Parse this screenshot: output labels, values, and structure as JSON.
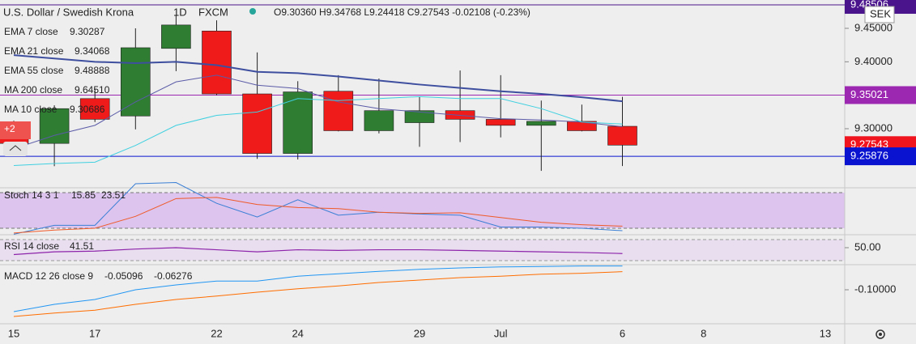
{
  "header": {
    "title": "U.S. Dollar / Swedish Krona",
    "interval": "1D",
    "source": "FXCM",
    "ohlc": "O9.30360 H9.34768 L9.24418 C9.27543 -0.02108 (-0.23%)",
    "currency": "SEK",
    "hidden_count": "+2"
  },
  "legend": [
    {
      "name": "EMA 7 close",
      "value": "9.30287",
      "color": "#3a6fc0"
    },
    {
      "name": "EMA 21 close",
      "value": "9.34068",
      "color": "#3f4f9f"
    },
    {
      "name": "EMA 55 close",
      "value": "9.48888",
      "color": "#f5a623"
    },
    {
      "name": "MA 200 close",
      "value": "9.64510",
      "color": "#ef5350"
    },
    {
      "name": "MA 10 close",
      "value": "9.30686",
      "color": "#3fd0e0"
    }
  ],
  "candles": {
    "open": [
      9.308,
      9.278,
      9.345,
      9.319,
      9.42,
      9.446,
      9.352,
      9.263,
      9.356,
      9.297,
      9.309,
      9.327,
      9.314,
      9.305,
      9.311,
      9.3036
    ],
    "high": [
      9.312,
      9.335,
      9.36,
      9.45,
      9.47,
      9.462,
      9.414,
      9.371,
      9.38,
      9.375,
      9.348,
      9.387,
      9.38,
      9.342,
      9.336,
      9.34768
    ],
    "low": [
      9.265,
      9.244,
      9.31,
      9.299,
      9.386,
      9.35,
      9.255,
      9.254,
      9.296,
      9.293,
      9.273,
      9.28,
      9.287,
      9.237,
      9.296,
      9.24418
    ],
    "close": [
      9.278,
      9.33,
      9.314,
      9.421,
      9.455,
      9.352,
      9.263,
      9.355,
      9.297,
      9.327,
      9.327,
      9.314,
      9.305,
      9.311,
      9.297,
      9.27543
    ]
  },
  "price_lines": [
    {
      "name": "EMA 7 close",
      "color": "#5b5ba8",
      "width": 1,
      "values": [
        9.27,
        9.29,
        9.305,
        9.34,
        9.37,
        9.38,
        9.365,
        9.36,
        9.34,
        9.33,
        9.325,
        9.32,
        9.315,
        9.313,
        9.31,
        9.303
      ]
    },
    {
      "name": "EMA 21 close",
      "color": "#3f4f9f",
      "width": 2,
      "values": [
        9.41,
        9.405,
        9.4,
        9.398,
        9.4,
        9.395,
        9.385,
        9.383,
        9.378,
        9.372,
        9.366,
        9.361,
        9.356,
        9.352,
        9.347,
        9.341
      ]
    },
    {
      "name": "MA 10 close",
      "color": "#3fd0e0",
      "width": 1,
      "values": [
        9.245,
        9.248,
        9.25,
        9.275,
        9.305,
        9.32,
        9.325,
        9.345,
        9.342,
        9.345,
        9.348,
        9.345,
        9.345,
        9.33,
        9.31,
        9.307
      ]
    }
  ],
  "price_axis": {
    "ticks": [
      {
        "value": 9.45,
        "label": "9.45000"
      },
      {
        "value": 9.4,
        "label": "9.40000"
      },
      {
        "value": 9.3,
        "label": "9.30000"
      }
    ],
    "markers": [
      {
        "value": 9.48506,
        "color": "#4a148c"
      },
      {
        "value": 9.35021,
        "color": "#9c27b0"
      },
      {
        "value": 9.27543,
        "color": "#f0141e"
      },
      {
        "value": 9.25876,
        "color": "#0a14d0"
      }
    ]
  },
  "stoch": {
    "name": "Stoch 14 3 1",
    "band": [
      20,
      80
    ],
    "k": {
      "value": "15.85",
      "color": "#3a7fd5",
      "values": [
        10,
        25,
        25,
        95,
        97,
        62,
        39,
        68,
        42,
        47,
        44,
        42,
        22,
        22,
        20,
        15.85
      ]
    },
    "d": {
      "value": "23.51",
      "color": "#f05a28",
      "values": [
        12,
        17,
        20,
        40,
        70,
        72,
        60,
        55,
        53,
        47,
        45,
        46,
        38,
        30,
        26,
        23.51
      ]
    }
  },
  "rsi": {
    "name": "RSI 14 close",
    "value": "41.51",
    "color": "#8e24aa",
    "tick": {
      "value": 50,
      "label": "50.00"
    },
    "values": [
      40,
      44,
      45,
      48,
      50,
      47,
      44,
      47,
      46,
      47,
      47,
      46,
      45,
      44,
      43,
      41.51
    ]
  },
  "macd": {
    "name": "MACD 12 26 close 9",
    "tick": {
      "value": -0.1,
      "label": "-0.10000"
    },
    "macd": {
      "value": "-0.05096",
      "color": "#2196f3",
      "values": [
        -0.145,
        -0.13,
        -0.12,
        -0.1,
        -0.09,
        -0.082,
        -0.082,
        -0.072,
        -0.067,
        -0.062,
        -0.058,
        -0.055,
        -0.053,
        -0.052,
        -0.051,
        -0.05096
      ]
    },
    "signal": {
      "value": "-0.06276",
      "color": "#ff6d00",
      "values": [
        -0.155,
        -0.148,
        -0.142,
        -0.13,
        -0.12,
        -0.113,
        -0.105,
        -0.098,
        -0.092,
        -0.085,
        -0.08,
        -0.075,
        -0.072,
        -0.068,
        -0.066,
        -0.06276
      ]
    }
  },
  "x_labels": [
    "15",
    null,
    "17",
    null,
    null,
    "22",
    null,
    "24",
    null,
    null,
    "29",
    null,
    "Jul",
    null,
    null,
    "6",
    null,
    "8",
    null,
    null,
    "13"
  ]
}
